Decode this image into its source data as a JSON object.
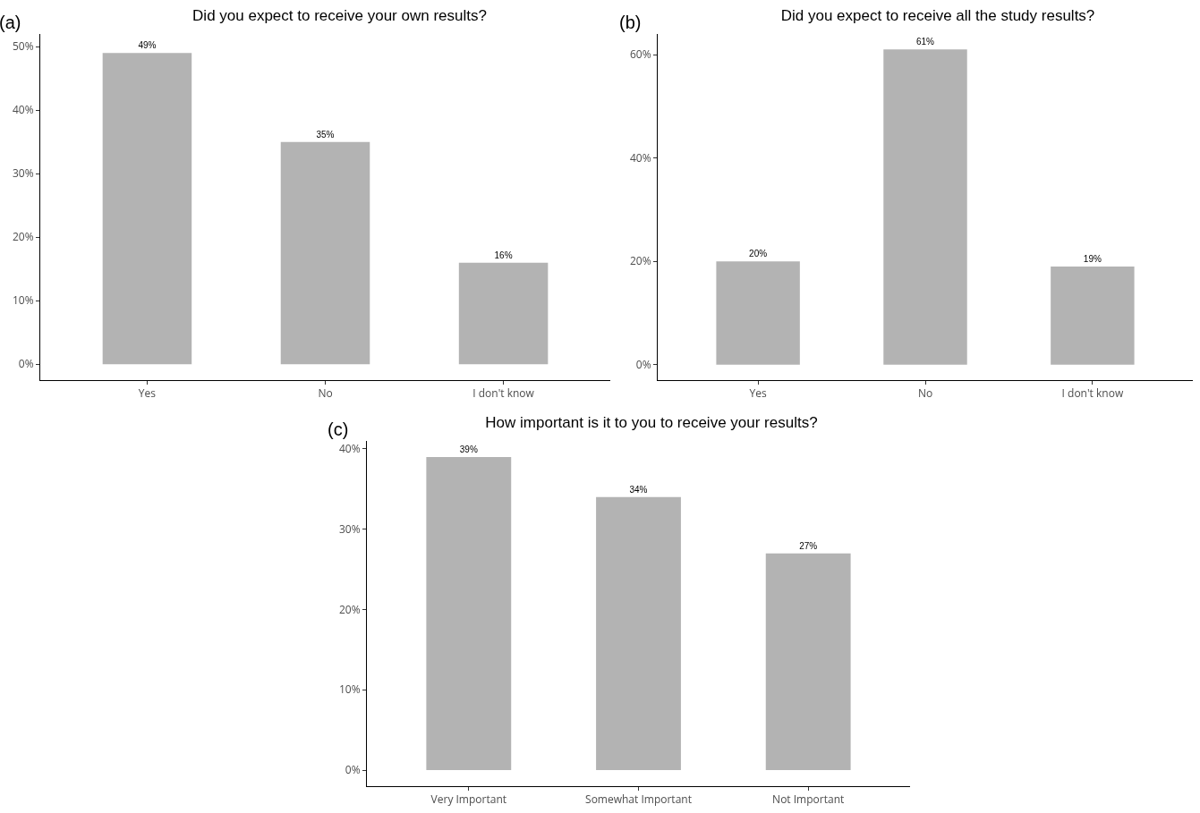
{
  "chart_data": [
    {
      "type": "bar",
      "title": "Did you expect to receive your own results?",
      "annotations": [
        "(a)"
      ],
      "categories": [
        "Yes",
        "No",
        "I don't know"
      ],
      "values": [
        49,
        35,
        16
      ],
      "value_labels": [
        "49%",
        "35%",
        "16%"
      ],
      "color": "#b3b3b3",
      "ylim": [
        -2.5,
        52
      ],
      "yticks": [
        {
          "value": 0,
          "label": "0%"
        },
        {
          "value": 10,
          "label": "10%"
        },
        {
          "value": 20,
          "label": "20%"
        },
        {
          "value": 30,
          "label": "30%"
        },
        {
          "value": 40,
          "label": "40%"
        },
        {
          "value": 50,
          "label": "50%"
        }
      ]
    },
    {
      "type": "bar",
      "title": "Did you expect to receive all the study results?",
      "annotations": [
        "(b)"
      ],
      "categories": [
        "Yes",
        "No",
        "I don't know"
      ],
      "values": [
        20,
        61,
        19
      ],
      "value_labels": [
        "20%",
        "61%",
        "19%"
      ],
      "color": "#b3b3b3",
      "ylim": [
        -3,
        64
      ],
      "yticks": [
        {
          "value": 0,
          "label": "0%"
        },
        {
          "value": 20,
          "label": "20%"
        },
        {
          "value": 40,
          "label": "40%"
        },
        {
          "value": 60,
          "label": "60%"
        }
      ]
    },
    {
      "type": "bar",
      "title": "How important is it to you to receive your results?",
      "annotations": [
        "(c)"
      ],
      "categories": [
        "Very Important",
        "Somewhat Important",
        "Not Important"
      ],
      "values": [
        39,
        34,
        27
      ],
      "value_labels": [
        "39%",
        "34%",
        "27%"
      ],
      "color": "#b3b3b3",
      "ylim": [
        -2,
        41
      ],
      "yticks": [
        {
          "value": 0,
          "label": "0%"
        },
        {
          "value": 10,
          "label": "10%"
        },
        {
          "value": 20,
          "label": "20%"
        },
        {
          "value": 30,
          "label": "30%"
        },
        {
          "value": 40,
          "label": "40%"
        }
      ]
    }
  ]
}
